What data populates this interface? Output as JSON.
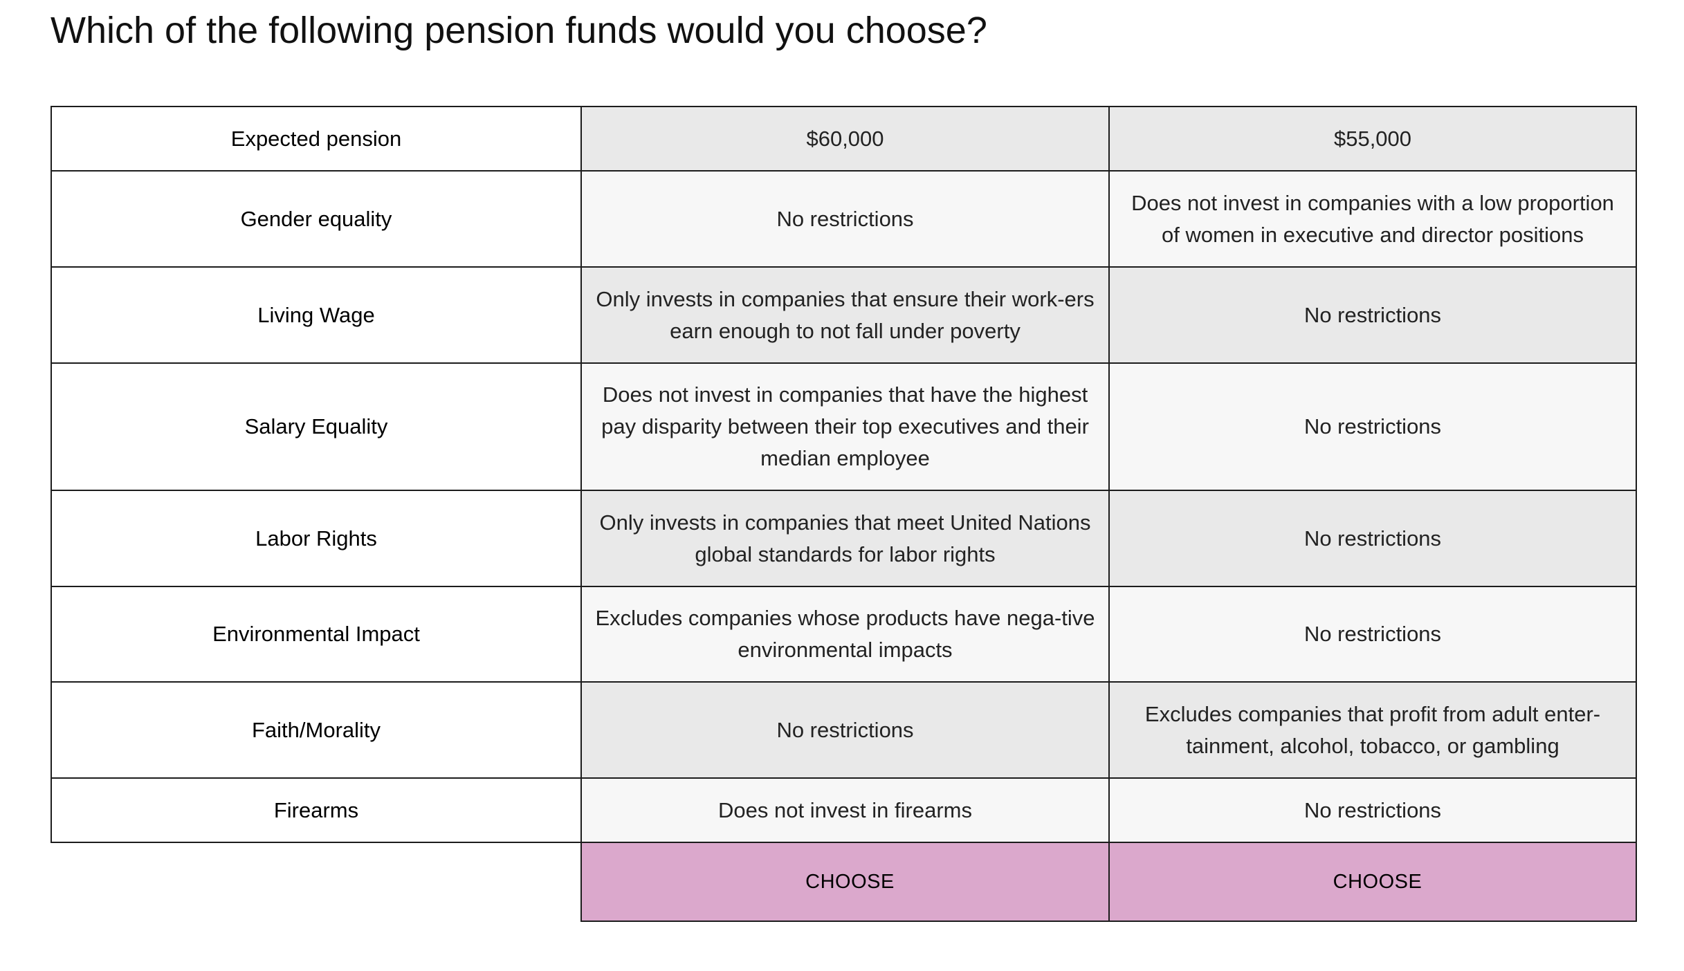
{
  "question": "Which of the following pension funds would you choose?",
  "rows": [
    {
      "label": "Expected pension",
      "fund_a": "$60,000",
      "fund_b": "$55,000"
    },
    {
      "label": "Gender equality",
      "fund_a": "No restrictions",
      "fund_b": "Does not invest in companies with a low proportion of women in executive and director positions"
    },
    {
      "label": "Living Wage",
      "fund_a": "Only invests in companies that ensure their work-ers earn enough to not fall under poverty",
      "fund_b": "No restrictions"
    },
    {
      "label": "Salary Equality",
      "fund_a": "Does not invest in companies that have the highest pay disparity between their top executives and their median employee",
      "fund_b": "No restrictions"
    },
    {
      "label": "Labor Rights",
      "fund_a": "Only invests in companies that meet United Nations global standards for labor rights",
      "fund_b": "No restrictions"
    },
    {
      "label": "Environmental Impact",
      "fund_a": "Excludes companies whose products have nega-tive environmental impacts",
      "fund_b": "No restrictions"
    },
    {
      "label": "Faith/Morality",
      "fund_a": "No restrictions",
      "fund_b": "Excludes companies that profit from adult enter-tainment, alcohol, tobacco, or gambling"
    },
    {
      "label": "Firearms",
      "fund_a": "Does not invest in firearms",
      "fund_b": "No restrictions"
    }
  ],
  "buttons": {
    "fund_a": "CHOOSE",
    "fund_b": "CHOOSE"
  },
  "colors": {
    "choose_button": "#dba8cc",
    "cell_dark": "#e9e9e9",
    "cell_light": "#f7f7f7",
    "border": "#1c1c1c"
  }
}
